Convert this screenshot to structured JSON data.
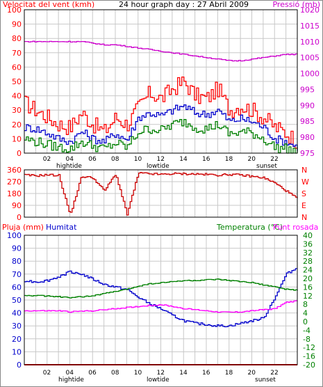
{
  "colors": {
    "background": "#ffffff",
    "plot_bg": "#ffffff",
    "grid": "#c8c8c8",
    "frame": "#000000",
    "wind_gust": "#ff0000",
    "wind_avg": "#0000cc",
    "wind_low": "#008000",
    "pressure": "#cc00cc",
    "direction": "#cc0000",
    "rain": "#ff0000",
    "humidity": "#0000cc",
    "temperature": "#008000",
    "dewpoint": "#ff00ff",
    "red_label": "#ff0000",
    "magenta_label": "#cc00cc",
    "blue_label": "#0000cc",
    "green_label": "#008000"
  },
  "x_ticks": [
    "02",
    "04",
    "06",
    "08",
    "10",
    "12",
    "14",
    "16",
    "18",
    "20",
    "22"
  ],
  "tide_labels": {
    "hightide_1": "hightide",
    "lowtide": "lowtide",
    "sunset": "sunset",
    "hightide_2": "hightide"
  },
  "chart_data": [
    {
      "type": "line",
      "title": "24 hour graph day : 27 Abril 2009",
      "left_axis": {
        "label": "Velocitat del vent (kmh)",
        "range": [
          0,
          100
        ],
        "ticks": [
          "0",
          "10",
          "20",
          "30",
          "40",
          "50",
          "60",
          "70",
          "80",
          "90",
          "100"
        ]
      },
      "right_axis": {
        "label": "Pressió (mb)",
        "range": [
          975,
          1020
        ],
        "ticks": [
          "975",
          "980",
          "985",
          "990",
          "995",
          "1000",
          "1005",
          "1010",
          "1015",
          "1020"
        ]
      },
      "x": [
        0,
        1,
        2,
        3,
        4,
        5,
        6,
        7,
        8,
        9,
        10,
        11,
        12,
        13,
        14,
        15,
        16,
        17,
        18,
        19,
        20,
        21,
        22,
        23,
        24
      ],
      "series": [
        {
          "name": "wind_gust",
          "axis": "left",
          "values": [
            35,
            30,
            25,
            20,
            18,
            28,
            20,
            15,
            25,
            20,
            32,
            42,
            38,
            45,
            50,
            40,
            38,
            45,
            30,
            33,
            30,
            25,
            18,
            14,
            8
          ]
        },
        {
          "name": "wind_avg",
          "axis": "left",
          "values": [
            18,
            17,
            14,
            10,
            8,
            15,
            10,
            8,
            14,
            9,
            25,
            28,
            26,
            30,
            33,
            28,
            27,
            30,
            22,
            24,
            22,
            18,
            10,
            8,
            4
          ]
        },
        {
          "name": "wind_low",
          "axis": "left",
          "values": [
            10,
            8,
            6,
            4,
            3,
            8,
            5,
            3,
            7,
            4,
            15,
            17,
            16,
            20,
            22,
            18,
            17,
            20,
            13,
            15,
            14,
            10,
            4,
            3,
            1
          ]
        },
        {
          "name": "pressure",
          "axis": "right",
          "values": [
            1010,
            1010,
            1010,
            1010,
            1010,
            1010,
            1009.5,
            1009,
            1009,
            1008.5,
            1008,
            1007.5,
            1007,
            1006.5,
            1006,
            1005.5,
            1005,
            1004.5,
            1004,
            1004,
            1004.5,
            1005,
            1005.5,
            1006,
            1006
          ]
        }
      ]
    },
    {
      "type": "line",
      "y_left_ticks": [
        "360",
        "270",
        "180",
        "90",
        "0"
      ],
      "y_right_ticks": [
        "N",
        "W",
        "S",
        "E",
        "N"
      ],
      "range": [
        0,
        360
      ],
      "x": [
        0,
        1,
        2,
        3,
        4,
        5,
        6,
        7,
        8,
        9,
        10,
        11,
        12,
        13,
        14,
        15,
        16,
        17,
        18,
        19,
        20,
        21,
        22,
        23,
        24
      ],
      "series": [
        {
          "name": "direction",
          "values": [
            320,
            315,
            322,
            318,
            15,
            310,
            300,
            200,
            330,
            20,
            335,
            330,
            325,
            330,
            330,
            328,
            325,
            320,
            325,
            320,
            310,
            300,
            260,
            200,
            140
          ]
        }
      ]
    },
    {
      "type": "line",
      "labels": {
        "rain": "Pluja (mm)",
        "humidity": "Humitat",
        "temperature": "Temperatura (°C)",
        "dewpoint": "Punt rosada"
      },
      "left_axis": {
        "range": [
          0,
          100
        ],
        "ticks": [
          "0",
          "10",
          "20",
          "30",
          "40",
          "50",
          "60",
          "70",
          "80",
          "90",
          "100"
        ]
      },
      "right_axis": {
        "range": [
          -20,
          40
        ],
        "ticks": [
          "-20",
          "-16",
          "-12",
          "-8",
          "-4",
          "0",
          "4",
          "8",
          "12",
          "16",
          "20",
          "24",
          "28",
          "32",
          "36",
          "40"
        ]
      },
      "x": [
        0,
        1,
        2,
        3,
        4,
        5,
        6,
        7,
        8,
        9,
        10,
        11,
        12,
        13,
        14,
        15,
        16,
        17,
        18,
        19,
        20,
        21,
        22,
        23,
        24
      ],
      "series": [
        {
          "name": "rain",
          "axis": "left",
          "values": [
            0,
            0,
            0,
            0,
            0,
            0,
            0,
            0,
            0,
            0,
            0,
            0,
            0,
            0,
            0,
            0,
            0,
            0,
            0,
            0,
            0,
            0,
            0,
            0,
            0
          ]
        },
        {
          "name": "humidity",
          "axis": "left",
          "values": [
            65,
            64,
            65,
            68,
            72,
            70,
            66,
            62,
            60,
            58,
            52,
            47,
            43,
            38,
            34,
            32,
            31,
            30,
            30,
            32,
            34,
            36,
            52,
            70,
            75
          ]
        },
        {
          "name": "temperature",
          "axis": "right",
          "values": [
            12,
            12,
            11.8,
            11.5,
            11,
            11.5,
            12,
            13,
            14,
            15,
            16.5,
            17.5,
            18,
            18.5,
            19,
            19,
            19.3,
            19.5,
            19,
            18.5,
            18,
            17,
            16,
            15,
            14.5
          ]
        },
        {
          "name": "dewpoint",
          "axis": "right",
          "values": [
            5,
            5,
            5,
            5,
            4.5,
            4.8,
            5,
            5.5,
            6,
            6.5,
            7,
            7.5,
            7.8,
            7,
            6,
            5.5,
            5,
            4.5,
            4.3,
            4.5,
            5,
            5.5,
            6,
            9,
            9.5
          ]
        }
      ]
    }
  ]
}
